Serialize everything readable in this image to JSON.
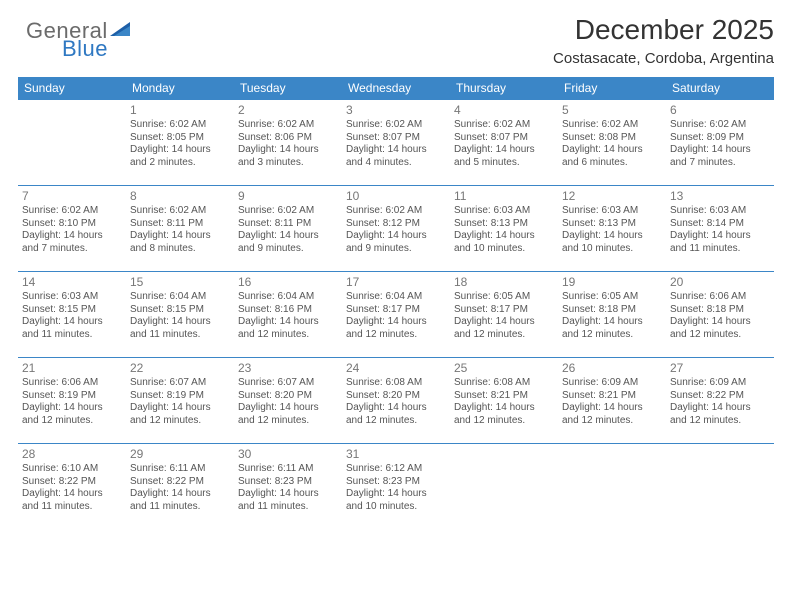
{
  "brand": {
    "word1": "General",
    "word2": "Blue"
  },
  "header": {
    "title": "December 2025",
    "subtitle": "Costasacate, Cordoba, Argentina"
  },
  "calendar": {
    "type": "table",
    "columns": [
      "Sunday",
      "Monday",
      "Tuesday",
      "Wednesday",
      "Thursday",
      "Friday",
      "Saturday"
    ],
    "header_bg": "#3b86c7",
    "header_text_color": "#ffffff",
    "cell_border_color": "#3b86c7",
    "body_text_color": "#555555",
    "daynum_color": "#777777",
    "font_size_body": 10,
    "font_size_header": 12,
    "weeks": [
      [
        null,
        {
          "n": "1",
          "sr": "Sunrise: 6:02 AM",
          "ss": "Sunset: 8:05 PM",
          "d1": "Daylight: 14 hours",
          "d2": "and 2 minutes."
        },
        {
          "n": "2",
          "sr": "Sunrise: 6:02 AM",
          "ss": "Sunset: 8:06 PM",
          "d1": "Daylight: 14 hours",
          "d2": "and 3 minutes."
        },
        {
          "n": "3",
          "sr": "Sunrise: 6:02 AM",
          "ss": "Sunset: 8:07 PM",
          "d1": "Daylight: 14 hours",
          "d2": "and 4 minutes."
        },
        {
          "n": "4",
          "sr": "Sunrise: 6:02 AM",
          "ss": "Sunset: 8:07 PM",
          "d1": "Daylight: 14 hours",
          "d2": "and 5 minutes."
        },
        {
          "n": "5",
          "sr": "Sunrise: 6:02 AM",
          "ss": "Sunset: 8:08 PM",
          "d1": "Daylight: 14 hours",
          "d2": "and 6 minutes."
        },
        {
          "n": "6",
          "sr": "Sunrise: 6:02 AM",
          "ss": "Sunset: 8:09 PM",
          "d1": "Daylight: 14 hours",
          "d2": "and 7 minutes."
        }
      ],
      [
        {
          "n": "7",
          "sr": "Sunrise: 6:02 AM",
          "ss": "Sunset: 8:10 PM",
          "d1": "Daylight: 14 hours",
          "d2": "and 7 minutes."
        },
        {
          "n": "8",
          "sr": "Sunrise: 6:02 AM",
          "ss": "Sunset: 8:11 PM",
          "d1": "Daylight: 14 hours",
          "d2": "and 8 minutes."
        },
        {
          "n": "9",
          "sr": "Sunrise: 6:02 AM",
          "ss": "Sunset: 8:11 PM",
          "d1": "Daylight: 14 hours",
          "d2": "and 9 minutes."
        },
        {
          "n": "10",
          "sr": "Sunrise: 6:02 AM",
          "ss": "Sunset: 8:12 PM",
          "d1": "Daylight: 14 hours",
          "d2": "and 9 minutes."
        },
        {
          "n": "11",
          "sr": "Sunrise: 6:03 AM",
          "ss": "Sunset: 8:13 PM",
          "d1": "Daylight: 14 hours",
          "d2": "and 10 minutes."
        },
        {
          "n": "12",
          "sr": "Sunrise: 6:03 AM",
          "ss": "Sunset: 8:13 PM",
          "d1": "Daylight: 14 hours",
          "d2": "and 10 minutes."
        },
        {
          "n": "13",
          "sr": "Sunrise: 6:03 AM",
          "ss": "Sunset: 8:14 PM",
          "d1": "Daylight: 14 hours",
          "d2": "and 11 minutes."
        }
      ],
      [
        {
          "n": "14",
          "sr": "Sunrise: 6:03 AM",
          "ss": "Sunset: 8:15 PM",
          "d1": "Daylight: 14 hours",
          "d2": "and 11 minutes."
        },
        {
          "n": "15",
          "sr": "Sunrise: 6:04 AM",
          "ss": "Sunset: 8:15 PM",
          "d1": "Daylight: 14 hours",
          "d2": "and 11 minutes."
        },
        {
          "n": "16",
          "sr": "Sunrise: 6:04 AM",
          "ss": "Sunset: 8:16 PM",
          "d1": "Daylight: 14 hours",
          "d2": "and 12 minutes."
        },
        {
          "n": "17",
          "sr": "Sunrise: 6:04 AM",
          "ss": "Sunset: 8:17 PM",
          "d1": "Daylight: 14 hours",
          "d2": "and 12 minutes."
        },
        {
          "n": "18",
          "sr": "Sunrise: 6:05 AM",
          "ss": "Sunset: 8:17 PM",
          "d1": "Daylight: 14 hours",
          "d2": "and 12 minutes."
        },
        {
          "n": "19",
          "sr": "Sunrise: 6:05 AM",
          "ss": "Sunset: 8:18 PM",
          "d1": "Daylight: 14 hours",
          "d2": "and 12 minutes."
        },
        {
          "n": "20",
          "sr": "Sunrise: 6:06 AM",
          "ss": "Sunset: 8:18 PM",
          "d1": "Daylight: 14 hours",
          "d2": "and 12 minutes."
        }
      ],
      [
        {
          "n": "21",
          "sr": "Sunrise: 6:06 AM",
          "ss": "Sunset: 8:19 PM",
          "d1": "Daylight: 14 hours",
          "d2": "and 12 minutes."
        },
        {
          "n": "22",
          "sr": "Sunrise: 6:07 AM",
          "ss": "Sunset: 8:19 PM",
          "d1": "Daylight: 14 hours",
          "d2": "and 12 minutes."
        },
        {
          "n": "23",
          "sr": "Sunrise: 6:07 AM",
          "ss": "Sunset: 8:20 PM",
          "d1": "Daylight: 14 hours",
          "d2": "and 12 minutes."
        },
        {
          "n": "24",
          "sr": "Sunrise: 6:08 AM",
          "ss": "Sunset: 8:20 PM",
          "d1": "Daylight: 14 hours",
          "d2": "and 12 minutes."
        },
        {
          "n": "25",
          "sr": "Sunrise: 6:08 AM",
          "ss": "Sunset: 8:21 PM",
          "d1": "Daylight: 14 hours",
          "d2": "and 12 minutes."
        },
        {
          "n": "26",
          "sr": "Sunrise: 6:09 AM",
          "ss": "Sunset: 8:21 PM",
          "d1": "Daylight: 14 hours",
          "d2": "and 12 minutes."
        },
        {
          "n": "27",
          "sr": "Sunrise: 6:09 AM",
          "ss": "Sunset: 8:22 PM",
          "d1": "Daylight: 14 hours",
          "d2": "and 12 minutes."
        }
      ],
      [
        {
          "n": "28",
          "sr": "Sunrise: 6:10 AM",
          "ss": "Sunset: 8:22 PM",
          "d1": "Daylight: 14 hours",
          "d2": "and 11 minutes."
        },
        {
          "n": "29",
          "sr": "Sunrise: 6:11 AM",
          "ss": "Sunset: 8:22 PM",
          "d1": "Daylight: 14 hours",
          "d2": "and 11 minutes."
        },
        {
          "n": "30",
          "sr": "Sunrise: 6:11 AM",
          "ss": "Sunset: 8:23 PM",
          "d1": "Daylight: 14 hours",
          "d2": "and 11 minutes."
        },
        {
          "n": "31",
          "sr": "Sunrise: 6:12 AM",
          "ss": "Sunset: 8:23 PM",
          "d1": "Daylight: 14 hours",
          "d2": "and 10 minutes."
        },
        null,
        null,
        null
      ]
    ]
  }
}
